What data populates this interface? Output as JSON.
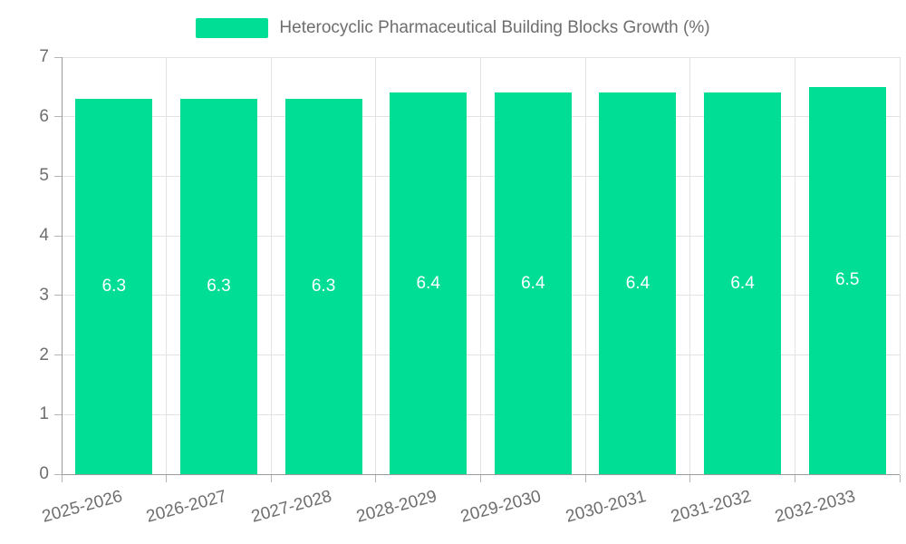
{
  "chart_data": {
    "type": "bar",
    "title": "Heterocyclic Pharmaceutical Building Blocks Growth (%)",
    "categories": [
      "2025-2026",
      "2026-2027",
      "2027-2028",
      "2028-2029",
      "2029-2030",
      "2030-2031",
      "2031-2032",
      "2032-2033"
    ],
    "values": [
      6.3,
      6.3,
      6.3,
      6.4,
      6.4,
      6.4,
      6.4,
      6.5
    ],
    "value_labels": [
      "6.3",
      "6.3",
      "6.3",
      "6.4",
      "6.4",
      "6.4",
      "6.4",
      "6.5"
    ],
    "xlabel": "",
    "ylabel": "",
    "ylim": [
      0,
      7
    ],
    "y_ticks": [
      0,
      1,
      2,
      3,
      4,
      5,
      6,
      7
    ],
    "grid": true,
    "legend_position": "top-center",
    "colors": {
      "bar": "#00DE96",
      "bar_value_text": "#ffffff",
      "axis_text": "#6e6e6e",
      "grid_line": "#e3e3e3",
      "axis_line": "#9b9b9b"
    }
  },
  "legend": {
    "label": "Heterocyclic Pharmaceutical Building Blocks Growth (%)",
    "swatch_color": "#00DE96"
  }
}
